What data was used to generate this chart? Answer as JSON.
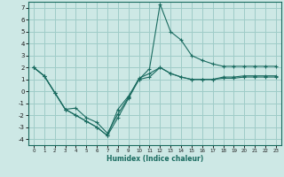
{
  "title": "",
  "xlabel": "Humidex (Indice chaleur)",
  "ylabel": "",
  "background_color": "#cde8e5",
  "grid_color": "#9fccc8",
  "line_color": "#1a6b60",
  "xlim": [
    -0.5,
    23.5
  ],
  "ylim": [
    -4.5,
    7.5
  ],
  "xticks": [
    0,
    1,
    2,
    3,
    4,
    5,
    6,
    7,
    8,
    9,
    10,
    11,
    12,
    13,
    14,
    15,
    16,
    17,
    18,
    19,
    20,
    21,
    22,
    23
  ],
  "yticks": [
    -4,
    -3,
    -2,
    -1,
    0,
    1,
    2,
    3,
    4,
    5,
    6,
    7
  ],
  "series": [
    [
      2.0,
      1.3,
      -0.1,
      -1.5,
      -2.0,
      -2.5,
      -3.0,
      -3.7,
      -2.2,
      -0.6,
      1.0,
      1.2,
      2.0,
      1.5,
      1.2,
      1.0,
      1.0,
      1.0,
      1.1,
      1.1,
      1.2,
      1.2,
      1.2,
      1.2
    ],
    [
      2.0,
      1.3,
      -0.1,
      -1.5,
      -2.0,
      -2.5,
      -3.0,
      -3.7,
      -1.5,
      -0.4,
      1.0,
      1.9,
      7.3,
      5.0,
      4.3,
      3.0,
      2.6,
      2.3,
      2.1,
      2.1,
      2.1,
      2.1,
      2.1,
      2.1
    ],
    [
      2.0,
      1.3,
      -0.1,
      -1.5,
      -1.4,
      -2.2,
      -2.6,
      -3.5,
      -1.9,
      -0.5,
      1.1,
      1.5,
      2.0,
      1.5,
      1.2,
      1.0,
      1.0,
      1.0,
      1.2,
      1.2,
      1.3,
      1.3,
      1.3,
      1.3
    ]
  ]
}
